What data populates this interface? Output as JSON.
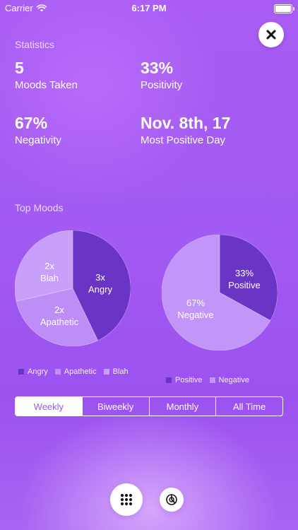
{
  "status_bar": {
    "carrier": "Carrier",
    "time": "6:17 PM"
  },
  "header": {
    "section_title": "Statistics"
  },
  "stats": [
    {
      "value": "5",
      "label": "Moods Taken"
    },
    {
      "value": "33%",
      "label": "Positivity"
    },
    {
      "value": "67%",
      "label": "Negativity"
    },
    {
      "value": "Nov. 8th, 17",
      "label": "Most Positive Day"
    }
  ],
  "top_moods": {
    "title": "Top Moods"
  },
  "chart_data": [
    {
      "type": "pie",
      "categories": [
        "Angry",
        "Apathetic",
        "Blah"
      ],
      "values": [
        3,
        2,
        2
      ],
      "slice_labels": [
        {
          "count": "3x",
          "name": "Angry"
        },
        {
          "count": "2x",
          "name": "Apathetic"
        },
        {
          "count": "2x",
          "name": "Blah"
        }
      ],
      "colors": [
        "#6a35c4",
        "#bd8ff6",
        "#c89ff9"
      ],
      "legend_placement": "bottom"
    },
    {
      "type": "pie",
      "categories": [
        "Positive",
        "Negative"
      ],
      "values": [
        33,
        67
      ],
      "slice_labels": [
        {
          "count": "33%",
          "name": "Positive"
        },
        {
          "count": "67%",
          "name": "Negative"
        }
      ],
      "colors": [
        "#6a35c4",
        "#c295f8"
      ],
      "legend_placement": "bottom"
    }
  ],
  "segments": [
    {
      "label": "Weekly",
      "active": true
    },
    {
      "label": "Biweekly",
      "active": false
    },
    {
      "label": "Monthly",
      "active": false
    },
    {
      "label": "All Time",
      "active": false
    }
  ],
  "icons": {
    "close": "close-icon",
    "grid": "grid-icon",
    "chart": "pie-chart-icon"
  },
  "colors": {
    "accent": "#9b58ee",
    "dark_slice": "#6a35c4"
  }
}
